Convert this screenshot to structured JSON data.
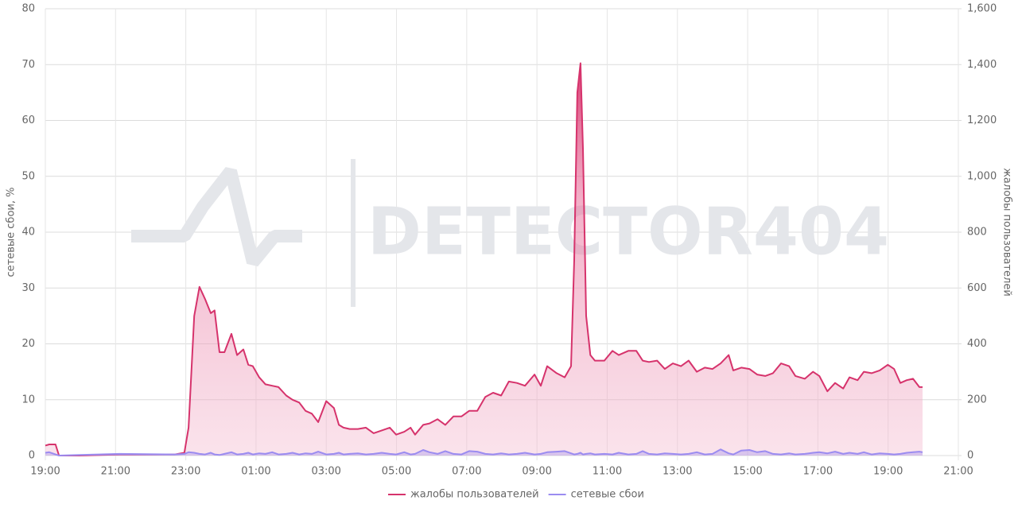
{
  "chart_data": {
    "type": "line",
    "watermark": "DETECTOR404",
    "ylabel": "сетевые сбои, %",
    "y2label": "жалобы пользователей",
    "xlim": [
      0,
      26
    ],
    "xticks": [
      {
        "value": 0,
        "label": "19:00"
      },
      {
        "value": 2,
        "label": "21:00"
      },
      {
        "value": 4,
        "label": "23:00"
      },
      {
        "value": 6,
        "label": "01:00"
      },
      {
        "value": 8,
        "label": "03:00"
      },
      {
        "value": 10,
        "label": "05:00"
      },
      {
        "value": 12,
        "label": "07:00"
      },
      {
        "value": 14,
        "label": "09:00"
      },
      {
        "value": 16,
        "label": "11:00"
      },
      {
        "value": 18,
        "label": "13:00"
      },
      {
        "value": 20,
        "label": "15:00"
      },
      {
        "value": 22,
        "label": "17:00"
      },
      {
        "value": 24,
        "label": "19:00"
      },
      {
        "value": 26,
        "label": "21:00"
      }
    ],
    "ylim": [
      0,
      80
    ],
    "yticks": [
      0,
      10,
      20,
      30,
      40,
      50,
      60,
      70,
      80
    ],
    "y2lim": [
      0,
      1600
    ],
    "y2ticks": [
      0,
      200,
      400,
      600,
      800,
      {
        "value": 1000,
        "label": "1,000"
      },
      {
        "value": 1200,
        "label": "1,200"
      },
      {
        "value": 1400,
        "label": "1,400"
      },
      {
        "value": 1600,
        "label": "1,600"
      }
    ],
    "grid": true,
    "legend": "bottom",
    "x": [
      0,
      0.11,
      0.29,
      0.39,
      0.97,
      2.11,
      3.69,
      3.96,
      4.08,
      4.24,
      4.39,
      4.55,
      4.71,
      4.82,
      4.96,
      5.1,
      5.3,
      5.46,
      5.64,
      5.78,
      5.91,
      6.09,
      6.27,
      6.46,
      6.64,
      6.86,
      7.04,
      7.23,
      7.41,
      7.59,
      7.77,
      8.0,
      8.22,
      8.36,
      8.49,
      8.67,
      8.9,
      9.13,
      9.35,
      9.58,
      9.81,
      9.99,
      10.22,
      10.4,
      10.53,
      10.76,
      10.94,
      11.17,
      11.39,
      11.62,
      11.85,
      12.07,
      12.3,
      12.53,
      12.75,
      12.98,
      13.2,
      13.43,
      13.66,
      13.93,
      14.11,
      14.29,
      14.56,
      14.79,
      14.97,
      15.06,
      15.15,
      15.24,
      15.31,
      15.4,
      15.52,
      15.65,
      15.92,
      16.15,
      16.33,
      16.6,
      16.83,
      17.01,
      17.19,
      17.42,
      17.64,
      17.87,
      18.1,
      18.32,
      18.55,
      18.78,
      19.0,
      19.23,
      19.46,
      19.59,
      19.82,
      20.05,
      20.27,
      20.5,
      20.72,
      20.95,
      21.18,
      21.36,
      21.63,
      21.86,
      22.04,
      22.27,
      22.49,
      22.72,
      22.9,
      23.13,
      23.31,
      23.53,
      23.76,
      23.99,
      24.17,
      24.35,
      24.53,
      24.71,
      24.89,
      24.98
    ],
    "series": [
      {
        "name": "жалобы пользователей",
        "color": "#d6336c",
        "axis": "y2",
        "area": true,
        "values": [
          36,
          40,
          40,
          0,
          0,
          4,
          4,
          10,
          100,
          500,
          604,
          560,
          510,
          520,
          370,
          370,
          436,
          360,
          380,
          325,
          320,
          280,
          255,
          250,
          245,
          215,
          200,
          190,
          160,
          150,
          120,
          195,
          170,
          110,
          100,
          95,
          95,
          100,
          80,
          90,
          100,
          75,
          85,
          100,
          75,
          110,
          115,
          130,
          110,
          140,
          140,
          160,
          160,
          210,
          225,
          215,
          265,
          260,
          250,
          290,
          250,
          320,
          295,
          280,
          320,
          700,
          1300,
          1405,
          1100,
          500,
          360,
          340,
          340,
          375,
          360,
          375,
          375,
          340,
          335,
          340,
          310,
          330,
          320,
          340,
          300,
          315,
          310,
          330,
          360,
          305,
          315,
          310,
          290,
          285,
          295,
          330,
          320,
          285,
          275,
          300,
          285,
          230,
          260,
          240,
          280,
          270,
          300,
          295,
          305,
          325,
          310,
          260,
          270,
          275,
          245,
          245
        ]
      },
      {
        "name": "сетевые сбои",
        "color": "#9b8cf0",
        "values": [
          0.5,
          0.6,
          0.2,
          0,
          0.1,
          0.3,
          0.2,
          0.3,
          0.6,
          0.5,
          0.3,
          0.2,
          0.5,
          0.2,
          0.1,
          0.3,
          0.6,
          0.2,
          0.3,
          0.5,
          0.2,
          0.4,
          0.3,
          0.6,
          0.2,
          0.3,
          0.5,
          0.2,
          0.4,
          0.3,
          0.7,
          0.2,
          0.3,
          0.5,
          0.2,
          0.3,
          0.4,
          0.2,
          0.3,
          0.5,
          0.3,
          0.2,
          0.6,
          0.2,
          0.3,
          1.0,
          0.6,
          0.3,
          0.8,
          0.3,
          0.2,
          0.8,
          0.7,
          0.3,
          0.2,
          0.4,
          0.2,
          0.3,
          0.5,
          0.2,
          0.3,
          0.6,
          0.7,
          0.8,
          0.4,
          0.2,
          0.3,
          0.5,
          0.2,
          0.3,
          0.4,
          0.2,
          0.3,
          0.2,
          0.5,
          0.2,
          0.3,
          0.8,
          0.3,
          0.2,
          0.4,
          0.3,
          0.2,
          0.3,
          0.6,
          0.2,
          0.3,
          1.1,
          0.4,
          0.2,
          0.9,
          1.0,
          0.6,
          0.8,
          0.3,
          0.2,
          0.4,
          0.2,
          0.3,
          0.5,
          0.6,
          0.4,
          0.7,
          0.3,
          0.5,
          0.3,
          0.6,
          0.2,
          0.4,
          0.3,
          0.2,
          0.3,
          0.5,
          0.6,
          0.7,
          0.6
        ]
      }
    ]
  }
}
